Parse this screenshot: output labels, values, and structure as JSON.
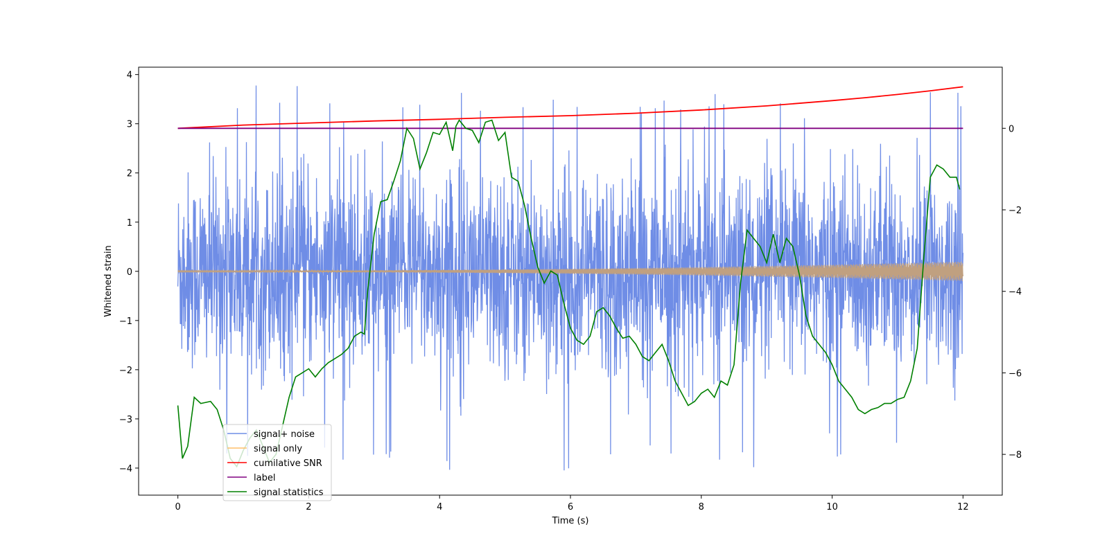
{
  "chart_data": {
    "type": "line",
    "title": "",
    "xlabel": "Time (s)",
    "ylabel": "Whitened strain",
    "y2label": "",
    "xlim": [
      -0.6,
      12.6
    ],
    "ylim": [
      -4.55,
      4.15
    ],
    "y2lim": [
      -9.0,
      1.5
    ],
    "xticks": [
      0,
      2,
      4,
      6,
      8,
      10,
      12
    ],
    "yticks": [
      -4,
      -3,
      -2,
      -1,
      0,
      1,
      2,
      3,
      4
    ],
    "y2ticks": [
      -8,
      -6,
      -4,
      -2,
      0
    ],
    "grid": false,
    "legend_position": "lower-left",
    "colors": {
      "signal_noise": "#6f8de6",
      "signal_only": "#ffbf69",
      "signal_overlap": "#c0a080",
      "cumulative_snr": "#ff0000",
      "label": "#800080",
      "signal_statistics": "#008000"
    },
    "series": [
      {
        "name": "signal+ noise",
        "axis": "left",
        "style": "noise band",
        "x_range": [
          0,
          12
        ],
        "typical_envelope": [
          -1.6,
          1.6
        ],
        "extremes": [
          -4.05,
          3.78
        ]
      },
      {
        "name": "signal only",
        "axis": "left",
        "style": "chirp",
        "x_range": [
          0,
          12
        ],
        "amplitude_start": 0.01,
        "amplitude_end": 0.2
      },
      {
        "name": "cumilative SNR",
        "axis": "right",
        "x": [
          0,
          1,
          2,
          3,
          4,
          5,
          6,
          7,
          8,
          9,
          10,
          10.5,
          11,
          11.5,
          12
        ],
        "values": [
          0,
          0.08,
          0.13,
          0.18,
          0.22,
          0.27,
          0.31,
          0.37,
          0.45,
          0.55,
          0.68,
          0.75,
          0.83,
          0.92,
          1.02
        ]
      },
      {
        "name": "label",
        "axis": "right",
        "x": [
          0,
          12
        ],
        "values": [
          0,
          0
        ]
      },
      {
        "name": "signal statistics",
        "axis": "right",
        "x": [
          0,
          0.07,
          0.15,
          0.25,
          0.35,
          0.5,
          0.6,
          0.7,
          0.8,
          0.9,
          1.0,
          1.1,
          1.2,
          1.3,
          1.4,
          1.5,
          1.6,
          1.7,
          1.8,
          1.9,
          2.0,
          2.1,
          2.2,
          2.3,
          2.4,
          2.5,
          2.6,
          2.7,
          2.8,
          2.85,
          2.9,
          3.0,
          3.1,
          3.2,
          3.3,
          3.4,
          3.5,
          3.6,
          3.7,
          3.8,
          3.9,
          4.0,
          4.1,
          4.2,
          4.25,
          4.3,
          4.4,
          4.5,
          4.6,
          4.7,
          4.8,
          4.9,
          5.0,
          5.1,
          5.2,
          5.3,
          5.4,
          5.5,
          5.6,
          5.7,
          5.8,
          5.9,
          6.0,
          6.1,
          6.2,
          6.3,
          6.4,
          6.5,
          6.6,
          6.7,
          6.8,
          6.9,
          7.0,
          7.1,
          7.2,
          7.3,
          7.4,
          7.5,
          7.6,
          7.7,
          7.8,
          7.9,
          8.0,
          8.1,
          8.2,
          8.3,
          8.4,
          8.5,
          8.6,
          8.7,
          8.8,
          8.9,
          9.0,
          9.1,
          9.2,
          9.3,
          9.4,
          9.5,
          9.6,
          9.7,
          9.8,
          9.9,
          10.0,
          10.1,
          10.2,
          10.3,
          10.4,
          10.5,
          10.6,
          10.7,
          10.8,
          10.9,
          11.0,
          11.1,
          11.2,
          11.3,
          11.4,
          11.5,
          11.6,
          11.7,
          11.8,
          11.9,
          11.95
        ],
        "values": [
          -6.8,
          -8.1,
          -7.8,
          -6.6,
          -6.75,
          -6.7,
          -6.9,
          -7.4,
          -8.1,
          -8.3,
          -7.9,
          -7.6,
          -7.4,
          -7.8,
          -8.2,
          -8.0,
          -7.3,
          -6.6,
          -6.1,
          -6.0,
          -5.9,
          -6.1,
          -5.9,
          -5.75,
          -5.65,
          -5.55,
          -5.4,
          -5.1,
          -5.0,
          -5.05,
          -4.0,
          -2.6,
          -1.8,
          -1.75,
          -1.3,
          -0.8,
          0.0,
          -0.25,
          -1.0,
          -0.6,
          -0.1,
          -0.15,
          0.15,
          -0.55,
          0.05,
          0.2,
          0.0,
          -0.05,
          -0.35,
          0.15,
          0.2,
          -0.3,
          -0.1,
          -1.2,
          -1.3,
          -1.9,
          -2.7,
          -3.4,
          -3.8,
          -3.5,
          -3.6,
          -4.3,
          -4.9,
          -5.2,
          -5.3,
          -5.1,
          -4.5,
          -4.4,
          -4.6,
          -4.9,
          -5.15,
          -5.1,
          -5.3,
          -5.6,
          -5.7,
          -5.5,
          -5.3,
          -5.7,
          -6.2,
          -6.5,
          -6.8,
          -6.7,
          -6.5,
          -6.4,
          -6.6,
          -6.2,
          -6.3,
          -5.8,
          -3.8,
          -2.5,
          -2.7,
          -2.9,
          -3.3,
          -2.6,
          -3.3,
          -2.7,
          -2.9,
          -3.6,
          -4.6,
          -5.1,
          -5.3,
          -5.5,
          -5.8,
          -6.2,
          -6.4,
          -6.6,
          -6.9,
          -7.0,
          -6.9,
          -6.85,
          -6.75,
          -6.75,
          -6.65,
          -6.6,
          -6.2,
          -5.4,
          -3.2,
          -1.2,
          -0.9,
          -1.0,
          -1.2,
          -1.2,
          -1.5
        ]
      }
    ]
  }
}
